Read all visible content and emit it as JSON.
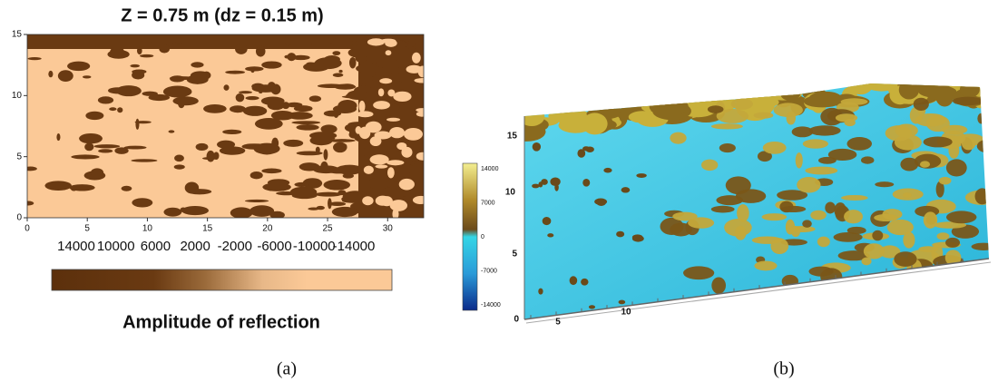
{
  "panel_a": {
    "title": "Z = 0.75 m (dz = 0.15 m)",
    "xlim": [
      0,
      33
    ],
    "ylim": [
      0,
      15
    ],
    "xticks": [
      0,
      5,
      10,
      15,
      20,
      25,
      30
    ],
    "yticks": [
      0,
      5,
      10,
      15
    ],
    "colorbar": {
      "ticks": [
        "14000",
        "10000",
        "6000",
        "2000",
        "-2000",
        "-6000",
        "-10000",
        "-14000"
      ],
      "label": "Amplitude of reflection"
    },
    "caption": "(a)"
  },
  "panel_b": {
    "colorbar": {
      "ticks": [
        "14000",
        "7000",
        "0",
        "-7000",
        "-14000"
      ]
    },
    "y_labels": [
      "15",
      "10",
      "5",
      "0"
    ],
    "x_labels": [
      "5",
      "10"
    ],
    "caption": "(b)"
  }
}
